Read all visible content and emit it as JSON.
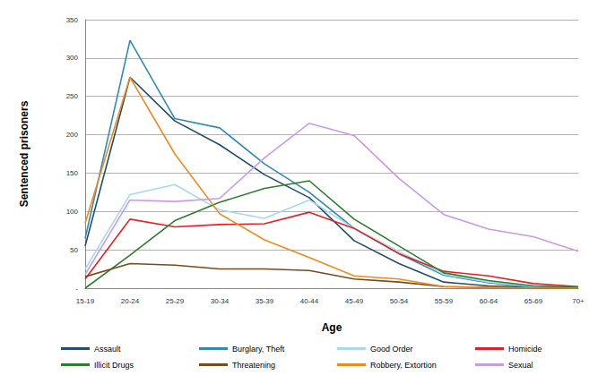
{
  "chart_data": {
    "type": "line",
    "x_label": "Age",
    "y_label": "Sentenced prisoners",
    "categories": [
      "15-19",
      "20-24",
      "25-29",
      "30-34",
      "35-39",
      "40-44",
      "45-49",
      "50-54",
      "55-59",
      "60-64",
      "65-69",
      "70+"
    ],
    "series": [
      {
        "name": "Assault",
        "color": "#1f4e6e",
        "values": [
          55,
          275,
          218,
          187,
          148,
          118,
          62,
          32,
          8,
          3,
          1,
          0
        ]
      },
      {
        "name": "Burglary, Theft",
        "color": "#2e8ab8",
        "values": [
          65,
          323,
          221,
          209,
          162,
          125,
          78,
          45,
          17,
          7,
          1,
          0
        ]
      },
      {
        "name": "Good Order",
        "color": "#a6d8ef",
        "values": [
          25,
          122,
          135,
          102,
          91,
          115,
          78,
          48,
          18,
          8,
          2,
          0
        ]
      },
      {
        "name": "Homicide",
        "color": "#e52020",
        "values": [
          12,
          90,
          80,
          83,
          84,
          99,
          78,
          45,
          22,
          16,
          6,
          2
        ]
      },
      {
        "name": "Illicit Drugs",
        "color": "#2e7d2e",
        "values": [
          0,
          43,
          88,
          112,
          130,
          140,
          90,
          55,
          20,
          10,
          3,
          1
        ]
      },
      {
        "name": "Threatening",
        "color": "#7a4a1a",
        "values": [
          15,
          32,
          30,
          25,
          25,
          23,
          12,
          8,
          2,
          1,
          0,
          0
        ]
      },
      {
        "name": "Robbery, Extortion",
        "color": "#f08a1a",
        "values": [
          85,
          275,
          175,
          97,
          63,
          40,
          16,
          12,
          2,
          1,
          0,
          0
        ]
      },
      {
        "name": "Sexual",
        "color": "#c89be8",
        "values": [
          18,
          115,
          113,
          117,
          170,
          215,
          199,
          143,
          96,
          77,
          67,
          48
        ]
      }
    ],
    "ylim": [
      0,
      350
    ],
    "yticks": [
      {
        "value": 0,
        "label": "-"
      },
      50,
      100,
      150,
      200,
      250,
      300,
      350
    ],
    "grid": true,
    "legend": "bottom",
    "marker": "none",
    "line_style": "solid"
  }
}
